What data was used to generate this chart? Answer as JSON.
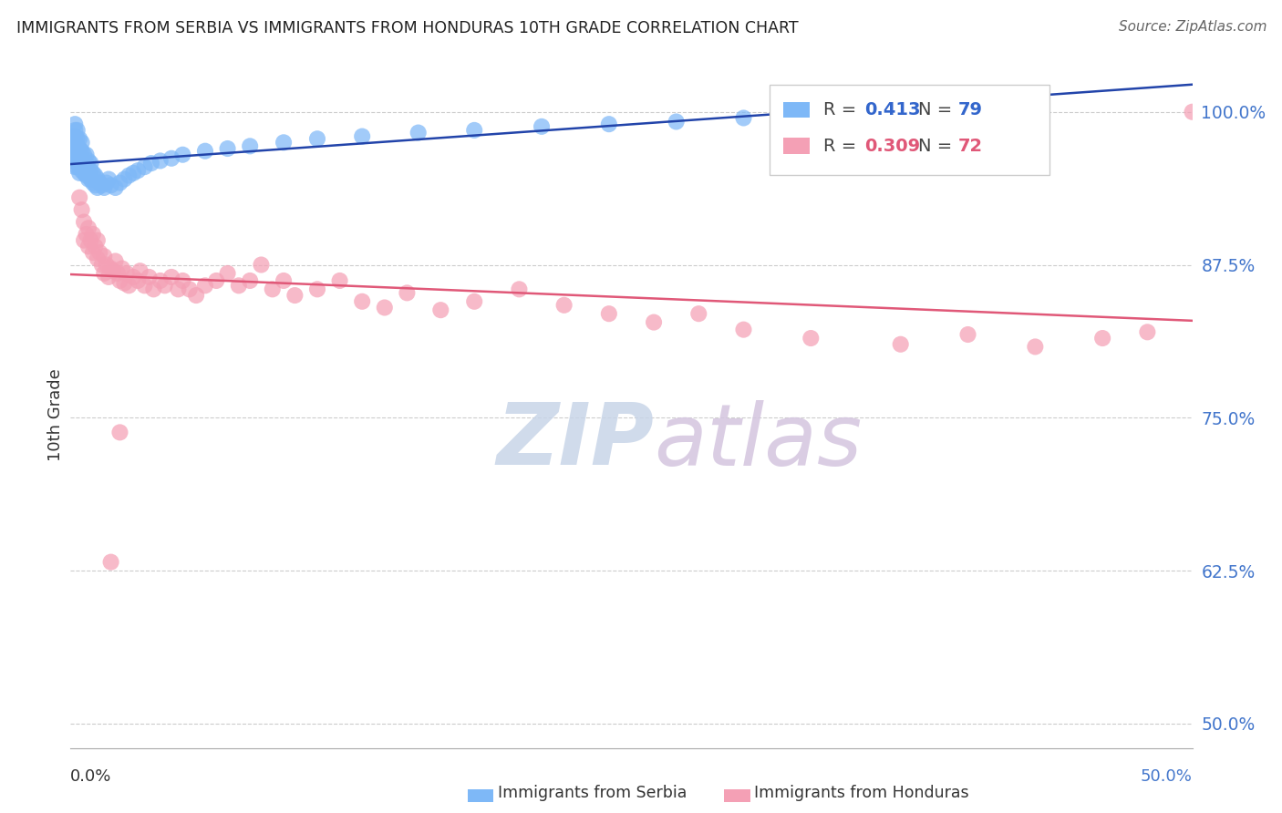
{
  "title": "IMMIGRANTS FROM SERBIA VS IMMIGRANTS FROM HONDURAS 10TH GRADE CORRELATION CHART",
  "source": "Source: ZipAtlas.com",
  "ylabel": "10th Grade",
  "serbia_color": "#7EB8F7",
  "serbia_line_color": "#2244AA",
  "honduras_color": "#F4A0B5",
  "honduras_line_color": "#E05878",
  "watermark_zip": "ZIP",
  "watermark_atlas": "atlas",
  "watermark_color_zip": "#C5D5E8",
  "watermark_color_atlas": "#D8C8E0",
  "legend_r_serbia": "0.413",
  "legend_n_serbia": "79",
  "legend_r_honduras": "0.309",
  "legend_n_honduras": "72",
  "xmin": 0.0,
  "xmax": 0.5,
  "ymin": 0.48,
  "ymax": 1.025,
  "serbia_x": [
    0.001,
    0.001,
    0.001,
    0.001,
    0.002,
    0.002,
    0.002,
    0.002,
    0.002,
    0.002,
    0.002,
    0.002,
    0.003,
    0.003,
    0.003,
    0.003,
    0.003,
    0.003,
    0.003,
    0.004,
    0.004,
    0.004,
    0.004,
    0.004,
    0.004,
    0.005,
    0.005,
    0.005,
    0.005,
    0.005,
    0.006,
    0.006,
    0.006,
    0.006,
    0.007,
    0.007,
    0.007,
    0.007,
    0.008,
    0.008,
    0.008,
    0.009,
    0.009,
    0.009,
    0.01,
    0.01,
    0.011,
    0.011,
    0.012,
    0.012,
    0.013,
    0.014,
    0.015,
    0.016,
    0.017,
    0.018,
    0.02,
    0.022,
    0.024,
    0.026,
    0.028,
    0.03,
    0.033,
    0.036,
    0.04,
    0.045,
    0.05,
    0.06,
    0.07,
    0.08,
    0.095,
    0.11,
    0.13,
    0.155,
    0.18,
    0.21,
    0.24,
    0.27,
    0.3
  ],
  "serbia_y": [
    0.96,
    0.97,
    0.975,
    0.98,
    0.955,
    0.96,
    0.965,
    0.97,
    0.975,
    0.98,
    0.985,
    0.99,
    0.955,
    0.96,
    0.965,
    0.968,
    0.972,
    0.978,
    0.985,
    0.95,
    0.955,
    0.96,
    0.965,
    0.97,
    0.978,
    0.952,
    0.958,
    0.962,
    0.968,
    0.975,
    0.95,
    0.955,
    0.96,
    0.965,
    0.948,
    0.953,
    0.958,
    0.965,
    0.945,
    0.95,
    0.96,
    0.945,
    0.952,
    0.958,
    0.942,
    0.95,
    0.94,
    0.948,
    0.938,
    0.945,
    0.942,
    0.94,
    0.938,
    0.942,
    0.945,
    0.94,
    0.938,
    0.942,
    0.945,
    0.948,
    0.95,
    0.952,
    0.955,
    0.958,
    0.96,
    0.962,
    0.965,
    0.968,
    0.97,
    0.972,
    0.975,
    0.978,
    0.98,
    0.983,
    0.985,
    0.988,
    0.99,
    0.992,
    0.995
  ],
  "honduras_x": [
    0.004,
    0.005,
    0.006,
    0.006,
    0.007,
    0.008,
    0.008,
    0.009,
    0.01,
    0.01,
    0.011,
    0.012,
    0.012,
    0.013,
    0.014,
    0.015,
    0.015,
    0.016,
    0.017,
    0.018,
    0.019,
    0.02,
    0.021,
    0.022,
    0.023,
    0.024,
    0.025,
    0.026,
    0.028,
    0.03,
    0.031,
    0.033,
    0.035,
    0.037,
    0.04,
    0.042,
    0.045,
    0.048,
    0.05,
    0.053,
    0.056,
    0.06,
    0.065,
    0.07,
    0.075,
    0.08,
    0.085,
    0.09,
    0.095,
    0.1,
    0.11,
    0.12,
    0.13,
    0.14,
    0.15,
    0.165,
    0.18,
    0.2,
    0.22,
    0.24,
    0.26,
    0.28,
    0.3,
    0.33,
    0.37,
    0.4,
    0.43,
    0.46,
    0.48,
    0.5,
    0.022,
    0.018
  ],
  "honduras_y": [
    0.93,
    0.92,
    0.91,
    0.895,
    0.9,
    0.905,
    0.89,
    0.895,
    0.885,
    0.9,
    0.89,
    0.88,
    0.895,
    0.885,
    0.875,
    0.882,
    0.868,
    0.875,
    0.865,
    0.872,
    0.87,
    0.878,
    0.868,
    0.862,
    0.872,
    0.86,
    0.868,
    0.858,
    0.865,
    0.862,
    0.87,
    0.858,
    0.865,
    0.855,
    0.862,
    0.858,
    0.865,
    0.855,
    0.862,
    0.855,
    0.85,
    0.858,
    0.862,
    0.868,
    0.858,
    0.862,
    0.875,
    0.855,
    0.862,
    0.85,
    0.855,
    0.862,
    0.845,
    0.84,
    0.852,
    0.838,
    0.845,
    0.855,
    0.842,
    0.835,
    0.828,
    0.835,
    0.822,
    0.815,
    0.81,
    0.818,
    0.808,
    0.815,
    0.82,
    1.0,
    0.738,
    0.632
  ]
}
